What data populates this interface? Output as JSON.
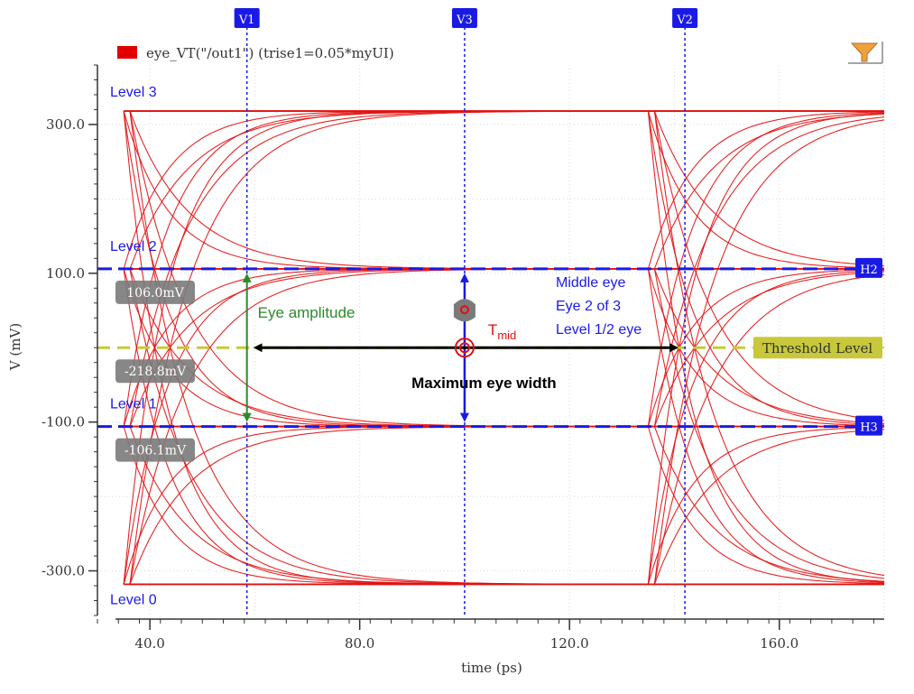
{
  "legend": {
    "label": "eye_VT(\"/out1\") (trise1=0.05*myUI)",
    "swatch_color": "#e00000",
    "filter_icon": "filter-icon"
  },
  "colors": {
    "trace": "#e01010",
    "marker": "#1a1ae6",
    "threshold": "#c8c83a",
    "annotation_green": "#2a8a2a",
    "label_gray": "#7a7a7a"
  },
  "chart_data": {
    "type": "line",
    "title": "",
    "xlabel": "time (ps)",
    "ylabel": "V (mV)",
    "xlim": [
      30,
      180
    ],
    "ylim": [
      -360,
      380
    ],
    "x_ticks": [
      40,
      80,
      120,
      160
    ],
    "x_tick_labels": [
      "40.0",
      "80.0",
      "120.0",
      "160.0"
    ],
    "y_ticks": [
      300,
      100,
      -100,
      -300
    ],
    "y_tick_labels": [
      "300.0",
      "100.0",
      "-100.0",
      "-300.0"
    ],
    "grid": true,
    "symbol_levels_mv": [
      -318,
      -106,
      106,
      318
    ],
    "level_labels": [
      "Level 0",
      "Level 1",
      "Level 2",
      "Level 3"
    ],
    "transitions_ps": [
      35,
      135
    ],
    "vertical_markers": [
      {
        "name": "V1",
        "x": 58.5
      },
      {
        "name": "V3",
        "x": 100
      },
      {
        "name": "V2",
        "x": 142
      }
    ],
    "horizontal_markers": [
      {
        "name": "H2",
        "y": 106
      },
      {
        "name": "H3",
        "y": -106
      }
    ],
    "threshold": {
      "label": "Threshold Level",
      "y": 0
    },
    "value_labels": [
      "106.0mV",
      "-218.8mV",
      "-106.1mV"
    ],
    "annotations": {
      "eye_amplitude": "Eye amplitude",
      "max_eye_width": "Maximum eye width",
      "t_mid_main": "T",
      "t_mid_sub": "mid",
      "middle_eye": [
        "Middle eye",
        "Eye 2 of 3",
        "Level 1/2 eye"
      ]
    }
  }
}
